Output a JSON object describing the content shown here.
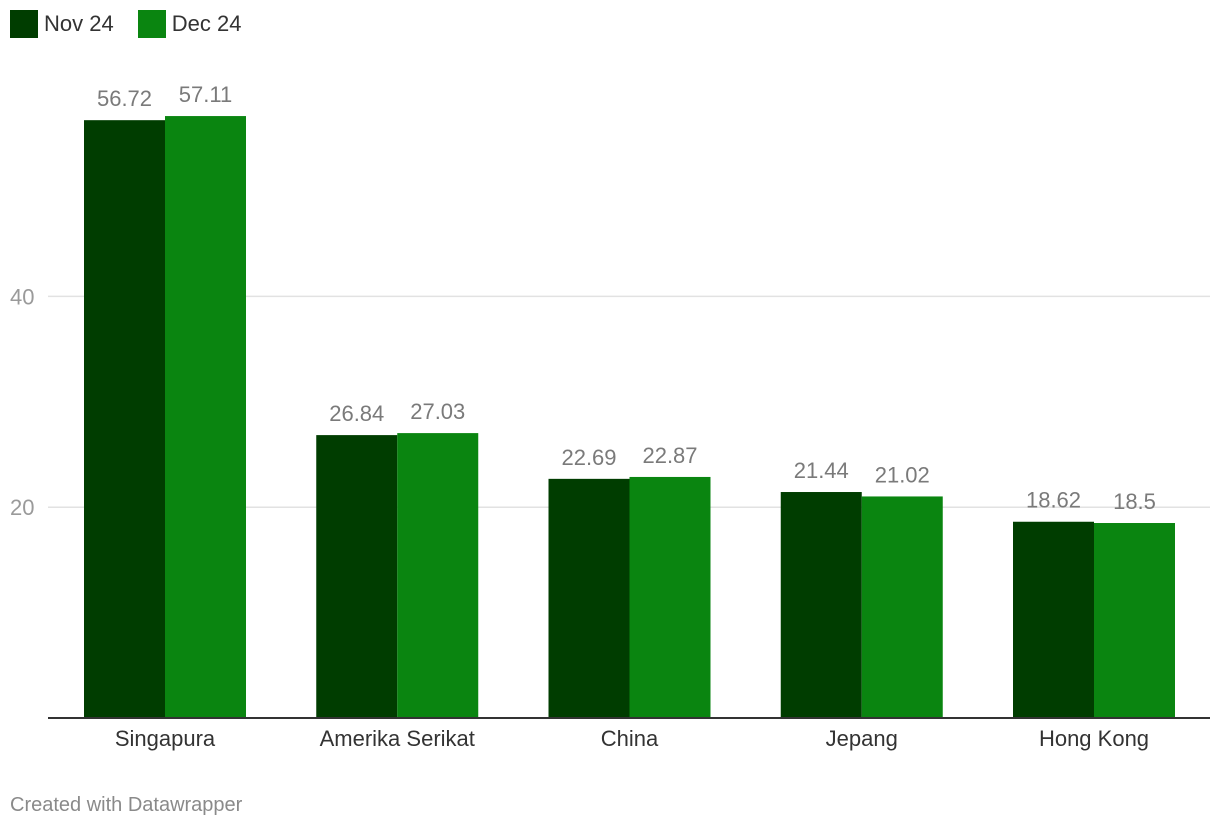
{
  "chart_data": {
    "type": "bar",
    "categories": [
      "Singapura",
      "Amerika Serikat",
      "China",
      "Jepang",
      "Hong Kong"
    ],
    "series": [
      {
        "name": "Nov 24",
        "color": "#003d00",
        "values": [
          56.72,
          26.84,
          22.69,
          21.44,
          18.62
        ],
        "labels": [
          "56.72",
          "26.84",
          "22.69",
          "21.44",
          "18.62"
        ]
      },
      {
        "name": "Dec 24",
        "color": "#0a8510",
        "values": [
          57.11,
          27.03,
          22.87,
          21.02,
          18.5
        ],
        "labels": [
          "57.11",
          "27.03",
          "22.87",
          "21.02",
          "18.5"
        ]
      }
    ],
    "yticks": [
      20,
      40
    ],
    "ytick_labels": [
      "20",
      "40"
    ],
    "ylim": [
      0,
      60
    ],
    "grid": true,
    "legend_position": "top-left"
  },
  "footer": {
    "credit": "Created with Datawrapper"
  }
}
